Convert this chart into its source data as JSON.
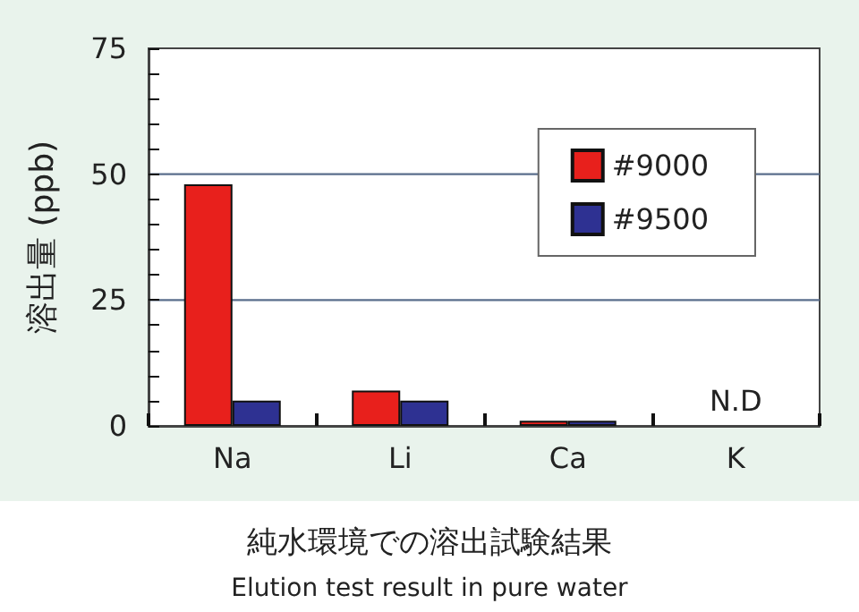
{
  "chart_data": {
    "type": "bar",
    "title": "純水環境での溶出試験結果",
    "subtitle": "Elution test result in pure water",
    "ylabel": "溶出量 (ppb)",
    "categories": [
      "Na",
      "Li",
      "Ca",
      "K"
    ],
    "series": [
      {
        "name": "#9000",
        "color": "#e8201c",
        "values": [
          48,
          7,
          1,
          null
        ]
      },
      {
        "name": "#9500",
        "color": "#2e3192",
        "values": [
          5,
          5,
          1,
          null
        ]
      }
    ],
    "ylim": [
      0,
      75
    ],
    "yticks": [
      0,
      {
        "value": 5,
        "label": null
      },
      {
        "value": 10,
        "label": null
      },
      {
        "value": 15,
        "label": null
      },
      {
        "value": 20,
        "label": null
      },
      25,
      {
        "value": 30,
        "label": null
      },
      {
        "value": 35,
        "label": null
      },
      {
        "value": 40,
        "label": null
      },
      {
        "value": 45,
        "label": null
      },
      50,
      {
        "value": 55,
        "label": null
      },
      {
        "value": 60,
        "label": null
      },
      {
        "value": 65,
        "label": null
      },
      {
        "value": 70,
        "label": null
      },
      75
    ],
    "grid": "y",
    "legend": "top right",
    "annotations": [
      "N.D"
    ]
  }
}
